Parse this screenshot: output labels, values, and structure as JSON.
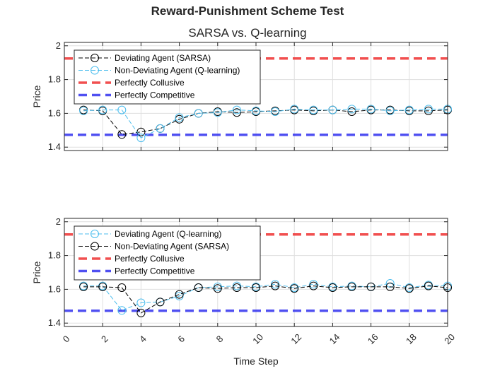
{
  "figure": {
    "title": "Reward-Punishment Scheme Test",
    "subtitle": "SARSA vs. Q-learning",
    "xlabel": "Time Step",
    "colors": {
      "sarsa": "#000000",
      "qlearning": "#4DBEEE",
      "collusive": "#F03C3C",
      "competitive": "#3C3CF0"
    }
  },
  "chart_data": [
    {
      "type": "line",
      "title": "",
      "xlabel": "",
      "ylabel": "Price",
      "xlim": [
        0,
        20
      ],
      "ylim": [
        1.38,
        2.02
      ],
      "yticks": [
        1.4,
        1.6,
        1.8,
        2
      ],
      "xticks": [
        0,
        2,
        4,
        6,
        8,
        10,
        12,
        14,
        16,
        18,
        20
      ],
      "show_xticklabels": false,
      "grid": true,
      "legend_position": "top-left",
      "series": [
        {
          "name": "Deviating Agent (SARSA)",
          "style": "marker-dashed",
          "color": "#000000",
          "x": [
            1,
            2,
            3,
            4,
            5,
            6,
            7,
            8,
            9,
            10,
            11,
            12,
            13,
            14,
            15,
            16,
            17,
            18,
            19,
            20
          ],
          "values": [
            1.62,
            1.615,
            1.475,
            1.49,
            1.51,
            1.565,
            1.6,
            1.61,
            1.605,
            1.61,
            1.615,
            1.62,
            1.615,
            1.62,
            1.61,
            1.62,
            1.62,
            1.615,
            1.615,
            1.62
          ]
        },
        {
          "name": "Non-Deviating Agent (Q-learning)",
          "style": "marker-dashed",
          "color": "#4DBEEE",
          "x": [
            1,
            2,
            3,
            4,
            5,
            6,
            7,
            8,
            9,
            10,
            11,
            12,
            13,
            14,
            15,
            16,
            17,
            18,
            19,
            20
          ],
          "values": [
            1.615,
            1.62,
            1.62,
            1.455,
            1.51,
            1.575,
            1.6,
            1.605,
            1.62,
            1.615,
            1.61,
            1.625,
            1.62,
            1.62,
            1.625,
            1.625,
            1.615,
            1.62,
            1.625,
            1.625
          ]
        },
        {
          "name": "Perfectly Collusive",
          "style": "hline",
          "color": "#F03C3C",
          "values": [
            1.925
          ]
        },
        {
          "name": "Perfectly Competitive",
          "style": "hline",
          "color": "#3C3CF0",
          "values": [
            1.473
          ]
        }
      ]
    },
    {
      "type": "line",
      "title": "",
      "xlabel": "Time Step",
      "ylabel": "Price",
      "xlim": [
        0,
        20
      ],
      "ylim": [
        1.38,
        2.02
      ],
      "yticks": [
        1.4,
        1.6,
        1.8,
        2
      ],
      "xticks": [
        0,
        2,
        4,
        6,
        8,
        10,
        12,
        14,
        16,
        18,
        20
      ],
      "show_xticklabels": true,
      "grid": true,
      "legend_position": "top-left",
      "series": [
        {
          "name": "Deviating Agent (Q-learning)",
          "style": "marker-dashed",
          "color": "#4DBEEE",
          "x": [
            1,
            2,
            3,
            4,
            5,
            6,
            7,
            8,
            9,
            10,
            11,
            12,
            13,
            14,
            15,
            16,
            17,
            18,
            19,
            20
          ],
          "values": [
            1.62,
            1.62,
            1.475,
            1.52,
            1.525,
            1.56,
            1.61,
            1.615,
            1.62,
            1.615,
            1.63,
            1.61,
            1.63,
            1.615,
            1.62,
            1.615,
            1.635,
            1.61,
            1.625,
            1.62
          ]
        },
        {
          "name": "Non-Deviating Agent (SARSA)",
          "style": "marker-dashed",
          "color": "#000000",
          "x": [
            1,
            2,
            3,
            4,
            5,
            6,
            7,
            8,
            9,
            10,
            11,
            12,
            13,
            14,
            15,
            16,
            17,
            18,
            19,
            20
          ],
          "values": [
            1.615,
            1.615,
            1.61,
            1.46,
            1.525,
            1.57,
            1.61,
            1.605,
            1.61,
            1.61,
            1.62,
            1.605,
            1.62,
            1.61,
            1.615,
            1.615,
            1.615,
            1.605,
            1.62,
            1.61
          ]
        },
        {
          "name": "Perfectly Collusive",
          "style": "hline",
          "color": "#F03C3C",
          "values": [
            1.925
          ]
        },
        {
          "name": "Perfectly Competitive",
          "style": "hline",
          "color": "#3C3CF0",
          "values": [
            1.473
          ]
        }
      ]
    }
  ]
}
